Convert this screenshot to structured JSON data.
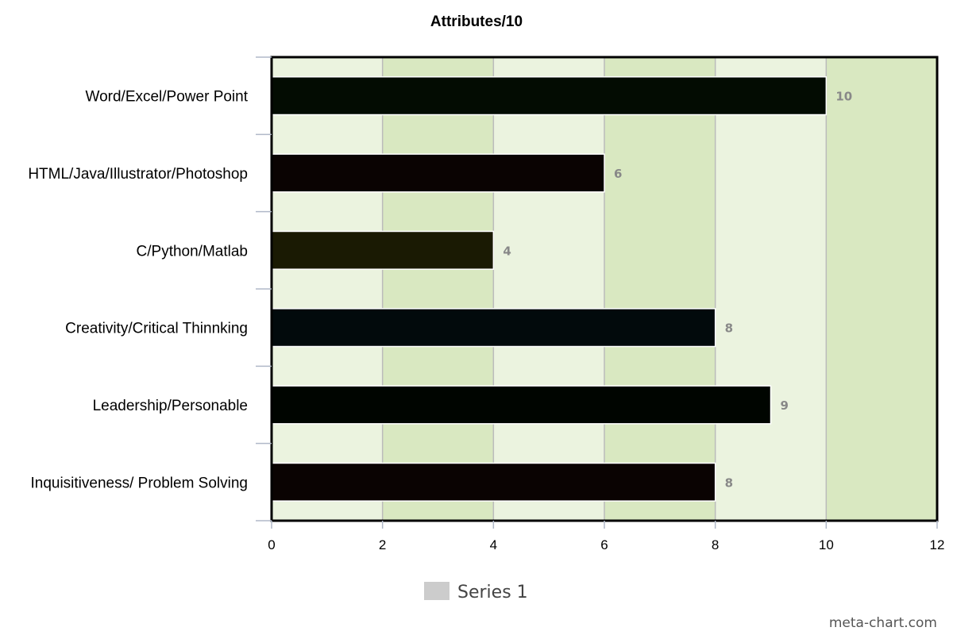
{
  "chart_data": {
    "type": "bar",
    "orientation": "horizontal",
    "title": "Attributes/10",
    "categories": [
      "Word/Excel/Power Point",
      "HTML/Java/Illustrator/Photoshop",
      "C/Python/Matlab",
      "Creativity/Critical Thinnking",
      "Leadership/Personable",
      "Inquisitiveness/ Problem Solving"
    ],
    "series": [
      {
        "name": "Series 1",
        "values": [
          10,
          6,
          4,
          8,
          9,
          8
        ],
        "data_labels": [
          "10",
          "6",
          "4",
          "8",
          "9",
          "8"
        ],
        "colors": [
          "#030c02",
          "#0a0302",
          "#1a1a03",
          "#020a0c",
          "#000500",
          "#0a0302"
        ]
      }
    ],
    "xlim": [
      0,
      12
    ],
    "x_ticks": [
      0,
      2,
      4,
      6,
      8,
      10,
      12
    ],
    "x_tick_labels": [
      "0",
      "2",
      "4",
      "6",
      "8",
      "10",
      "12"
    ],
    "grid": true,
    "legend": {
      "position": "bottom",
      "swatch_color": "#cccccc"
    },
    "band_colors": {
      "light": "#ebf3df",
      "dark": "#d9e8c1"
    }
  },
  "credit": "meta-chart.com"
}
